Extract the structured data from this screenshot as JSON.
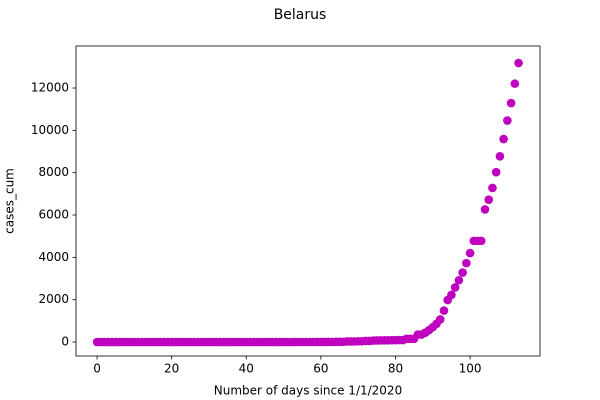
{
  "chart_data": {
    "type": "scatter",
    "title": "Belarus",
    "x_label": "Number of days since 1/1/2020",
    "y_label": "cases_cum",
    "color": "#bf00bf",
    "xlim": [
      -5.65,
      118.75
    ],
    "ylim": [
      -660,
      13985
    ],
    "xticks": [
      0,
      20,
      40,
      60,
      80,
      100
    ],
    "yticks": [
      0,
      2000,
      4000,
      6000,
      8000,
      10000,
      12000
    ],
    "x": [
      0,
      1,
      2,
      3,
      4,
      5,
      6,
      7,
      8,
      9,
      10,
      11,
      12,
      13,
      14,
      15,
      16,
      17,
      18,
      19,
      20,
      21,
      22,
      23,
      24,
      25,
      26,
      27,
      28,
      29,
      30,
      31,
      32,
      33,
      34,
      35,
      36,
      37,
      38,
      39,
      40,
      41,
      42,
      43,
      44,
      45,
      46,
      47,
      48,
      49,
      50,
      51,
      52,
      53,
      54,
      55,
      56,
      57,
      58,
      59,
      60,
      61,
      62,
      63,
      64,
      65,
      66,
      67,
      68,
      69,
      70,
      71,
      72,
      73,
      74,
      75,
      76,
      77,
      78,
      79,
      80,
      81,
      82,
      83,
      84,
      85,
      86,
      87,
      88,
      89,
      90,
      91,
      92,
      93,
      94,
      95,
      96,
      97,
      98,
      99,
      100,
      101,
      102,
      103,
      104,
      105,
      106,
      107,
      108,
      109,
      110,
      111,
      112,
      113
    ],
    "values": [
      0,
      0,
      0,
      0,
      0,
      0,
      0,
      0,
      0,
      0,
      0,
      0,
      0,
      0,
      0,
      0,
      0,
      0,
      0,
      0,
      0,
      0,
      0,
      0,
      0,
      0,
      0,
      0,
      0,
      0,
      0,
      0,
      0,
      0,
      0,
      0,
      0,
      0,
      0,
      0,
      0,
      0,
      0,
      0,
      0,
      0,
      0,
      0,
      0,
      0,
      0,
      0,
      0,
      0,
      1,
      1,
      1,
      1,
      1,
      6,
      6,
      6,
      6,
      6,
      9,
      9,
      9,
      27,
      27,
      27,
      36,
      36,
      51,
      51,
      69,
      76,
      76,
      81,
      81,
      86,
      86,
      94,
      94,
      152,
      152,
      152,
      351,
      351,
      440,
      562,
      700,
      861,
      1066,
      1486,
      1981,
      2226,
      2578,
      2919,
      3281,
      3728,
      4204,
      4779,
      4779,
      4779,
      6264,
      6723,
      7281,
      8022,
      8773,
      9590,
      10463,
      11289,
      12208,
      13181
    ]
  }
}
